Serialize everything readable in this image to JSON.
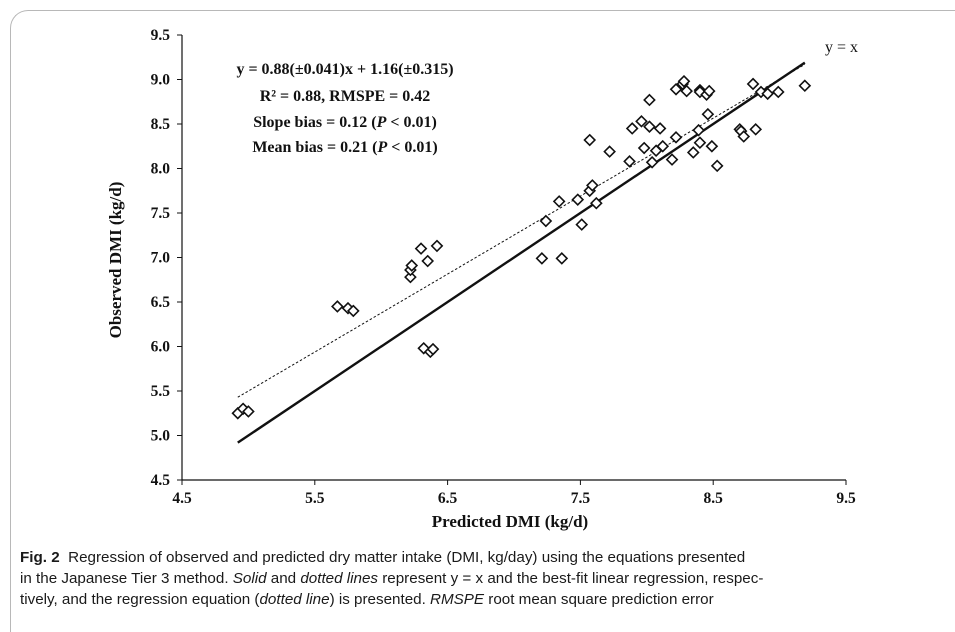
{
  "chart_data": {
    "type": "scatter",
    "xlabel": "Predicted DMI (kg/d)",
    "ylabel": "Observed DMI (kg/d)",
    "xlim": [
      4.5,
      9.5
    ],
    "ylim": [
      4.5,
      9.5
    ],
    "x_ticks": [
      "4.5",
      "5.5",
      "6.5",
      "7.5",
      "8.5",
      "9.5"
    ],
    "y_ticks": [
      "9.5",
      "9.0",
      "8.5",
      "8.0",
      "7.5",
      "7.0",
      "6.5",
      "6.0",
      "5.5",
      "5.0",
      "4.5"
    ],
    "grid": false,
    "marker": "diamond-open",
    "points": [
      [
        4.92,
        5.25
      ],
      [
        4.96,
        5.3
      ],
      [
        5.0,
        5.27
      ],
      [
        5.67,
        6.45
      ],
      [
        5.75,
        6.43
      ],
      [
        5.79,
        6.4
      ],
      [
        6.22,
        6.78
      ],
      [
        6.22,
        6.86
      ],
      [
        6.23,
        6.91
      ],
      [
        6.3,
        7.1
      ],
      [
        6.35,
        6.96
      ],
      [
        6.42,
        7.13
      ],
      [
        6.32,
        5.98
      ],
      [
        6.37,
        5.94
      ],
      [
        6.39,
        5.97
      ],
      [
        7.21,
        6.99
      ],
      [
        7.24,
        7.41
      ],
      [
        7.36,
        6.99
      ],
      [
        7.34,
        7.63
      ],
      [
        7.48,
        7.65
      ],
      [
        7.51,
        7.37
      ],
      [
        7.57,
        7.75
      ],
      [
        7.59,
        7.81
      ],
      [
        7.57,
        8.32
      ],
      [
        7.62,
        7.61
      ],
      [
        7.72,
        8.19
      ],
      [
        7.87,
        8.08
      ],
      [
        7.89,
        8.45
      ],
      [
        7.96,
        8.53
      ],
      [
        7.98,
        8.23
      ],
      [
        8.02,
        8.77
      ],
      [
        8.02,
        8.47
      ],
      [
        8.04,
        8.07
      ],
      [
        8.07,
        8.2
      ],
      [
        8.1,
        8.45
      ],
      [
        8.12,
        8.25
      ],
      [
        8.19,
        8.1
      ],
      [
        8.22,
        8.89
      ],
      [
        8.22,
        8.35
      ],
      [
        8.27,
        8.95
      ],
      [
        8.28,
        8.98
      ],
      [
        8.3,
        8.87
      ],
      [
        8.35,
        8.18
      ],
      [
        8.39,
        8.43
      ],
      [
        8.4,
        8.88
      ],
      [
        8.4,
        8.86
      ],
      [
        8.4,
        8.29
      ],
      [
        8.45,
        8.83
      ],
      [
        8.47,
        8.87
      ],
      [
        8.46,
        8.61
      ],
      [
        8.49,
        8.25
      ],
      [
        8.53,
        8.03
      ],
      [
        8.7,
        8.44
      ],
      [
        8.71,
        8.42
      ],
      [
        8.73,
        8.36
      ],
      [
        8.8,
        8.95
      ],
      [
        8.82,
        8.44
      ],
      [
        8.86,
        8.86
      ],
      [
        8.91,
        8.84
      ],
      [
        8.99,
        8.86
      ],
      [
        9.19,
        8.93
      ]
    ],
    "lines": [
      {
        "label": "y = x",
        "style": "solid",
        "x": [
          4.92,
          9.19
        ],
        "y": [
          4.92,
          9.19
        ]
      },
      {
        "label": "",
        "style": "dotted",
        "x": [
          4.92,
          9.19
        ],
        "y": [
          5.43,
          9.17
        ]
      }
    ],
    "annotations": {
      "equation": "y = 0.88(±0.041)x + 1.16(±0.315)",
      "r2": "R² = 0.88, RMSPE = 0.42",
      "slope_bias_prefix": "Slope bias = 0.12 (",
      "p_italic": "P",
      "slope_bias_suffix": " < 0.01)",
      "mean_bias_prefix": "Mean bias = 0.21 (",
      "mean_bias_suffix": " < 0.01)",
      "identity_label": "y = x"
    }
  },
  "caption": {
    "label": "Fig. 2",
    "line1": "Regression of observed and predicted dry matter intake (DMI, kg/day) using the equations presented",
    "line2_a": "in the Japanese Tier 3 method. ",
    "solid": "Solid",
    "and1": " and ",
    "dotted_lines": "dotted lines",
    "line2_b": " represent y = x and the best-fit linear regression, respec-",
    "line3_a": "tively, and the regression equation (",
    "dotted_line": "dotted line",
    "line3_b": ") is presented. ",
    "rmspe": "RMSPE",
    "line3_c": " root mean square prediction error"
  }
}
